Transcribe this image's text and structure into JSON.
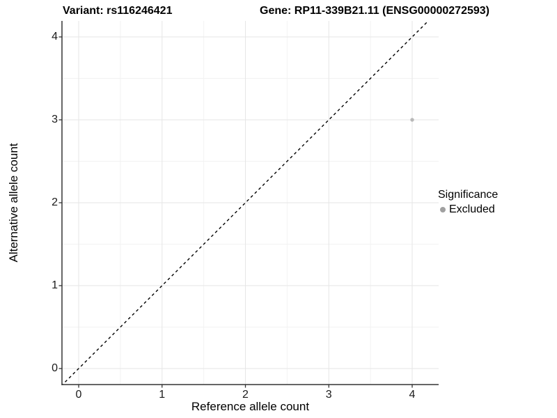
{
  "header": {
    "variant_title": "Variant: rs116246421",
    "gene_title": "Gene: RP11-339B21.11 (ENSG00000272593)"
  },
  "chart_data": {
    "type": "scatter",
    "title_left": "Variant: rs116246421",
    "title_right": "Gene: RP11-339B21.11 (ENSG00000272593)",
    "xlabel": "Reference allele count",
    "ylabel": "Alternative allele count",
    "xlim": [
      -0.2,
      4.32
    ],
    "ylim": [
      -0.19,
      4.19
    ],
    "x_ticks": [
      0,
      1,
      2,
      3,
      4
    ],
    "y_ticks": [
      0,
      1,
      2,
      3,
      4
    ],
    "x_minor_ticks": [
      0.5,
      1.5,
      2.5,
      3.5
    ],
    "y_minor_ticks": [
      0.5,
      1.5,
      2.5,
      3.5
    ],
    "grid": "major-and-minor",
    "panel_background": "#ffffff",
    "series": [
      {
        "name": "Excluded",
        "color": "#b8b8b8",
        "points": [
          {
            "x": 4,
            "y": 3
          }
        ]
      }
    ],
    "reference_line": {
      "type": "identity",
      "style": "dashed",
      "color": "#000000",
      "slope": 1,
      "intercept": 0
    },
    "legend": {
      "title": "Significance",
      "position": "right",
      "items": [
        {
          "label": "Excluded",
          "color": "#a0a0a0"
        }
      ]
    }
  },
  "colors": {
    "point": "#b8b8b8",
    "legend_dot": "#a0a0a0",
    "major_grid": "#e6e6e6",
    "minor_grid": "#f2f2f2",
    "axis_line": "#333333",
    "identity_line": "#000000"
  }
}
